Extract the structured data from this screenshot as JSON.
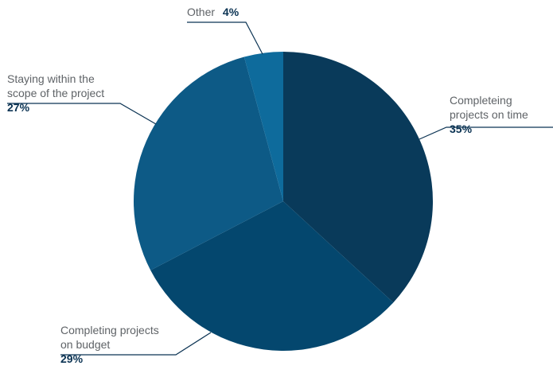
{
  "chart_data": {
    "type": "pie",
    "title": "",
    "slices": [
      {
        "label_lines": [
          "Completeing",
          "projects on time"
        ],
        "value": 35,
        "value_label": "35%",
        "color": "#093a5a"
      },
      {
        "label_lines": [
          "Completing projects",
          "on budget"
        ],
        "value": 29,
        "value_label": "29%",
        "color": "#04476e"
      },
      {
        "label_lines": [
          "Staying within the",
          "scope of the project"
        ],
        "value": 27,
        "value_label": "27%",
        "color": "#0d5a86"
      },
      {
        "label_lines": [
          "Other"
        ],
        "value": 4,
        "value_label": "4%",
        "color": "#0e6b9c"
      }
    ],
    "start": "12 o'clock",
    "direction": "clockwise",
    "label_color": "#5f6367",
    "value_color": "#0b3353",
    "leader_color": "#0b3353"
  }
}
